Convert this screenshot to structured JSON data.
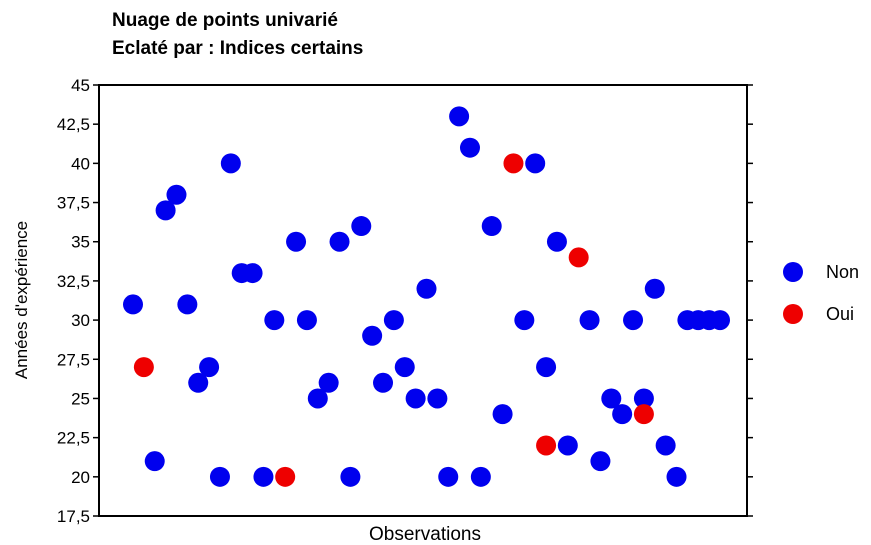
{
  "chart_data": {
    "type": "scatter",
    "title": "Nuage de points univarié",
    "subtitle": "Eclaté par : Indices certains",
    "xlabel": "Observations",
    "ylabel": "Années d'expérience",
    "ylim": [
      17.5,
      45
    ],
    "yticks": [
      "17,5",
      "20",
      "22,5",
      "25",
      "27,5",
      "30",
      "32,5",
      "35",
      "37,5",
      "40",
      "42,5",
      "45"
    ],
    "legend_position": "right",
    "grid": false,
    "series": [
      {
        "name": "Non",
        "color": "#0000ee",
        "x": [
          1,
          3,
          4,
          5,
          6,
          7,
          8,
          9,
          10,
          11,
          12,
          13,
          14,
          16,
          17,
          18,
          19,
          20,
          21,
          22,
          23,
          24,
          25,
          26,
          27,
          28,
          29,
          30,
          31,
          32,
          33,
          34,
          35,
          37,
          38,
          39,
          40,
          41,
          43,
          44,
          45,
          46,
          47,
          48,
          49,
          50,
          51,
          52,
          53,
          54,
          55
        ],
        "values": [
          31,
          21,
          37,
          38,
          31,
          26,
          27,
          20,
          40,
          33,
          33,
          20,
          30,
          35,
          30,
          25,
          26,
          35,
          20,
          36,
          29,
          26,
          30,
          27,
          25,
          32,
          25,
          20,
          43,
          41,
          20,
          36,
          24,
          30,
          40,
          27,
          35,
          22,
          30,
          21,
          25,
          24,
          30,
          25,
          32,
          22,
          20,
          30,
          30,
          30,
          30
        ]
      },
      {
        "name": "Oui",
        "color": "#ee0000",
        "x": [
          2,
          15,
          42,
          36,
          39,
          48
        ],
        "values": [
          27,
          20,
          34,
          40,
          22,
          24
        ]
      }
    ]
  }
}
